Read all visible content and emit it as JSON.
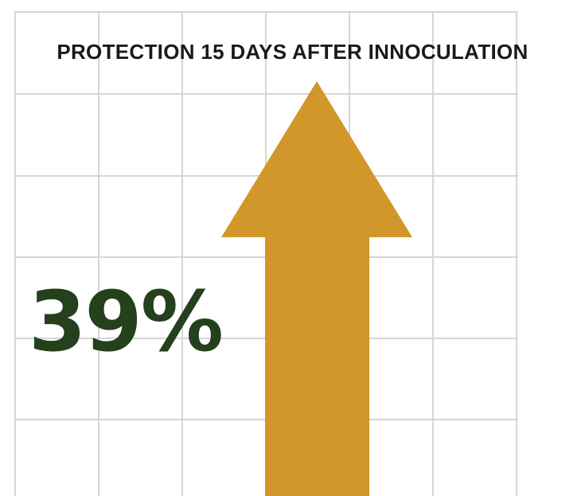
{
  "headline": "PROTECTION 15 DAYS AFTER INNOCULATION",
  "stat": {
    "value": "39%",
    "color": "#24401c"
  },
  "arrow": {
    "direction": "up",
    "color": "#d2972a"
  },
  "grid": {
    "line_color": "#d6d6d6"
  }
}
